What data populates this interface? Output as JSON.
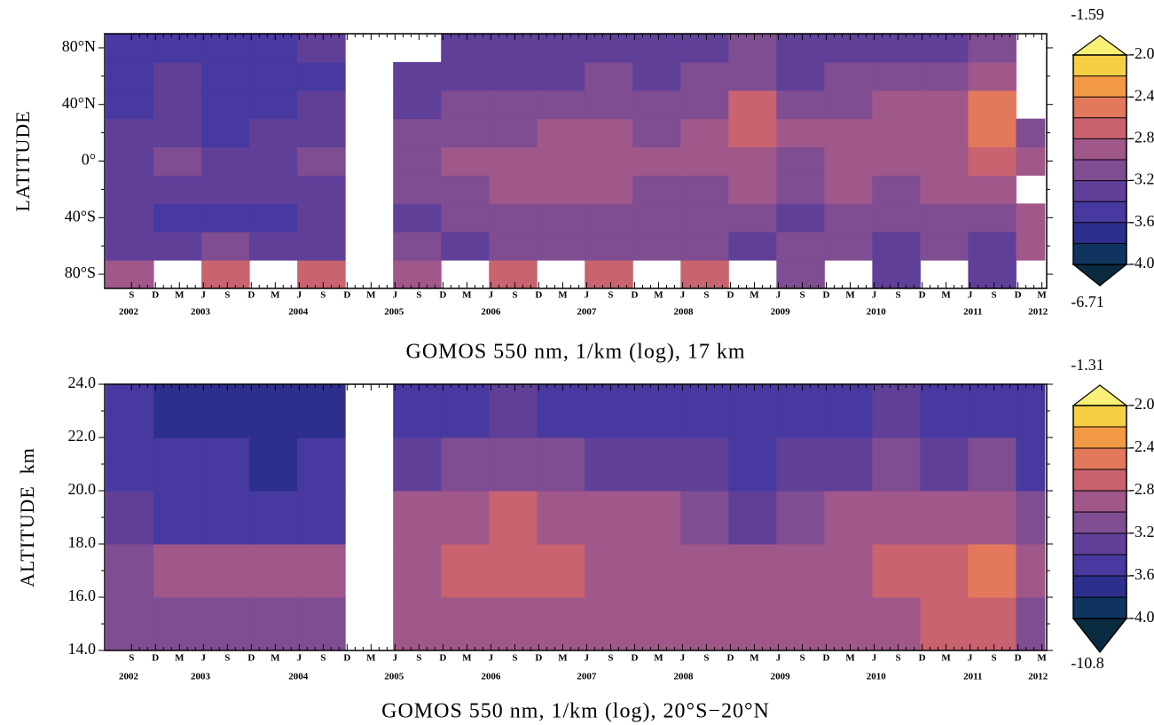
{
  "chart_data": [
    {
      "type": "heatmap",
      "title": "GOMOS 550 nm, 1/km (log), 17 km",
      "ylabel": "LATITUDE",
      "xlim": [
        2002.39,
        2012.22
      ],
      "ylim": [
        -90,
        90
      ],
      "xticks": [
        {
          "value": 2002.67,
          "label": "S"
        },
        {
          "value": 2002.92,
          "label": "D"
        },
        {
          "value": 2003.17,
          "label": "M"
        },
        {
          "value": 2003.42,
          "label": "J"
        },
        {
          "value": 2003.67,
          "label": "S"
        },
        {
          "value": 2003.92,
          "label": "D"
        },
        {
          "value": 2004.17,
          "label": "M"
        },
        {
          "value": 2004.42,
          "label": "J"
        },
        {
          "value": 2004.67,
          "label": "S"
        },
        {
          "value": 2004.92,
          "label": "D"
        },
        {
          "value": 2005.17,
          "label": "M"
        },
        {
          "value": 2005.42,
          "label": "J"
        },
        {
          "value": 2005.67,
          "label": "S"
        },
        {
          "value": 2005.92,
          "label": "D"
        },
        {
          "value": 2006.17,
          "label": "M"
        },
        {
          "value": 2006.42,
          "label": "J"
        },
        {
          "value": 2006.67,
          "label": "S"
        },
        {
          "value": 2006.92,
          "label": "D"
        },
        {
          "value": 2007.17,
          "label": "M"
        },
        {
          "value": 2007.42,
          "label": "J"
        },
        {
          "value": 2007.67,
          "label": "S"
        },
        {
          "value": 2007.92,
          "label": "D"
        },
        {
          "value": 2008.17,
          "label": "M"
        },
        {
          "value": 2008.42,
          "label": "J"
        },
        {
          "value": 2008.67,
          "label": "S"
        },
        {
          "value": 2008.92,
          "label": "D"
        },
        {
          "value": 2009.17,
          "label": "M"
        },
        {
          "value": 2009.42,
          "label": "J"
        },
        {
          "value": 2009.67,
          "label": "S"
        },
        {
          "value": 2009.92,
          "label": "D"
        },
        {
          "value": 2010.17,
          "label": "M"
        },
        {
          "value": 2010.42,
          "label": "J"
        },
        {
          "value": 2010.67,
          "label": "S"
        },
        {
          "value": 2010.92,
          "label": "D"
        },
        {
          "value": 2011.17,
          "label": "M"
        },
        {
          "value": 2011.42,
          "label": "J"
        },
        {
          "value": 2011.67,
          "label": "S"
        },
        {
          "value": 2011.92,
          "label": "D"
        },
        {
          "value": 2012.17,
          "label": "M"
        }
      ],
      "year_labels": [
        {
          "value": 2002.64,
          "label": "2002"
        },
        {
          "value": 2003.39,
          "label": "2003"
        },
        {
          "value": 2004.41,
          "label": "2004"
        },
        {
          "value": 2005.41,
          "label": "2005"
        },
        {
          "value": 2006.42,
          "label": "2006"
        },
        {
          "value": 2007.42,
          "label": "2007"
        },
        {
          "value": 2008.43,
          "label": "2008"
        },
        {
          "value": 2009.44,
          "label": "2009"
        },
        {
          "value": 2010.44,
          "label": "2010"
        },
        {
          "value": 2011.45,
          "label": "2011"
        },
        {
          "value": 2012.13,
          "label": "2012"
        }
      ],
      "yticks": [
        {
          "value": -80,
          "label": "80°S"
        },
        {
          "value": -40,
          "label": "40°S"
        },
        {
          "value": 0,
          "label": "0°"
        },
        {
          "value": 40,
          "label": "40°N"
        },
        {
          "value": 80,
          "label": "80°N"
        }
      ],
      "x_edges": [
        2002.4,
        2002.9,
        2003.4,
        2003.9,
        2004.4,
        2004.9,
        2005.4,
        2005.9,
        2006.4,
        2006.9,
        2007.4,
        2007.9,
        2008.4,
        2008.9,
        2009.4,
        2009.9,
        2010.4,
        2010.9,
        2011.4,
        2011.9,
        2012.2
      ],
      "y_edges": [
        -90,
        -70,
        -50,
        -30,
        -10,
        10,
        30,
        50,
        70,
        90
      ],
      "z": [
        [
          -2.9,
          null,
          -2.8,
          null,
          -2.7,
          null,
          -3.0,
          null,
          -2.7,
          null,
          -2.8,
          null,
          -2.8,
          null,
          -3.2,
          null,
          -3.3,
          null,
          -3.3,
          null
        ],
        [
          -3.3,
          -3.4,
          -3.2,
          -3.4,
          -3.3,
          null,
          -3.2,
          -3.3,
          -3.1,
          -3.2,
          -3.1,
          -3.2,
          -3.1,
          -3.3,
          -3.2,
          -3.2,
          -3.3,
          -3.2,
          -3.3,
          -2.9
        ],
        [
          -3.4,
          -3.5,
          -3.5,
          -3.5,
          -3.4,
          null,
          -3.3,
          -3.2,
          -3.1,
          -3.1,
          -3.1,
          -3.1,
          -3.2,
          -3.1,
          -3.3,
          -3.1,
          -3.2,
          -3.1,
          -3.2,
          -2.9
        ],
        [
          -3.4,
          -3.3,
          -3.4,
          -3.4,
          -3.3,
          null,
          -3.2,
          -3.1,
          -3.0,
          -3.0,
          -3.0,
          -3.1,
          -3.1,
          -3.0,
          -3.2,
          -3.0,
          -3.1,
          -3.0,
          -3.0,
          null
        ],
        [
          -3.3,
          -3.2,
          -3.4,
          -3.3,
          -3.2,
          null,
          -3.1,
          -3.0,
          -3.0,
          -2.9,
          -3.0,
          -3.0,
          -3.0,
          -2.9,
          -3.1,
          -3.0,
          -3.0,
          -2.9,
          -2.8,
          -3.0
        ],
        [
          -3.4,
          -3.3,
          -3.5,
          -3.4,
          -3.3,
          null,
          -3.2,
          -3.1,
          -3.1,
          -3.0,
          -3.0,
          -3.1,
          -3.0,
          -2.8,
          -3.0,
          -3.0,
          -3.0,
          -2.9,
          -2.6,
          -3.1
        ],
        [
          -3.5,
          -3.4,
          -3.5,
          -3.5,
          -3.4,
          null,
          -3.3,
          -3.2,
          -3.2,
          -3.2,
          -3.1,
          -3.2,
          -3.1,
          -2.8,
          -3.1,
          -3.1,
          -3.0,
          -3.0,
          -2.6,
          null
        ],
        [
          -3.5,
          -3.4,
          -3.5,
          -3.6,
          -3.5,
          null,
          -3.4,
          -3.3,
          -3.3,
          -3.3,
          -3.2,
          -3.3,
          -3.2,
          -3.1,
          -3.3,
          -3.2,
          -3.2,
          -3.2,
          -3.0,
          null
        ],
        [
          -3.6,
          -3.5,
          -3.5,
          -3.6,
          -3.4,
          null,
          null,
          -3.4,
          -3.3,
          -3.3,
          -3.3,
          -3.3,
          -3.3,
          -3.2,
          -3.3,
          -3.3,
          -3.3,
          -3.3,
          -3.1,
          null
        ]
      ],
      "colorbar": {
        "levels": [
          -4.0,
          -3.8,
          -3.6,
          -3.4,
          -3.2,
          -3.0,
          -2.8,
          -2.6,
          -2.4,
          -2.2,
          -2.0
        ],
        "ticks": [
          {
            "value": -4,
            "label": "-4.0"
          },
          -3.6,
          -3.2,
          -2.8,
          -2.4,
          {
            "value": -2,
            "label": "-2.0"
          }
        ],
        "colors": [
          "#0a2a40",
          "#0f3460",
          "#2c2f8c",
          "#4739a0",
          "#603f99",
          "#7f4d92",
          "#a0578a",
          "#c8636f",
          "#e2795c",
          "#f19a43",
          "#f6cf45",
          "#f8ef76"
        ],
        "min": -6.71,
        "max": -1.59
      }
    },
    {
      "type": "heatmap",
      "title": "GOMOS 550 nm, 1/km (log), 20°S−20°N",
      "ylabel": "ALTITUDE  km",
      "xlim": [
        2002.39,
        2012.22
      ],
      "ylim": [
        14,
        24
      ],
      "xticks": [
        {
          "value": 2002.67,
          "label": "S"
        },
        {
          "value": 2002.92,
          "label": "D"
        },
        {
          "value": 2003.17,
          "label": "M"
        },
        {
          "value": 2003.42,
          "label": "J"
        },
        {
          "value": 2003.67,
          "label": "S"
        },
        {
          "value": 2003.92,
          "label": "D"
        },
        {
          "value": 2004.17,
          "label": "M"
        },
        {
          "value": 2004.42,
          "label": "J"
        },
        {
          "value": 2004.67,
          "label": "S"
        },
        {
          "value": 2004.92,
          "label": "D"
        },
        {
          "value": 2005.17,
          "label": "M"
        },
        {
          "value": 2005.42,
          "label": "J"
        },
        {
          "value": 2005.67,
          "label": "S"
        },
        {
          "value": 2005.92,
          "label": "D"
        },
        {
          "value": 2006.17,
          "label": "M"
        },
        {
          "value": 2006.42,
          "label": "J"
        },
        {
          "value": 2006.67,
          "label": "S"
        },
        {
          "value": 2006.92,
          "label": "D"
        },
        {
          "value": 2007.17,
          "label": "M"
        },
        {
          "value": 2007.42,
          "label": "J"
        },
        {
          "value": 2007.67,
          "label": "S"
        },
        {
          "value": 2007.92,
          "label": "D"
        },
        {
          "value": 2008.17,
          "label": "M"
        },
        {
          "value": 2008.42,
          "label": "J"
        },
        {
          "value": 2008.67,
          "label": "S"
        },
        {
          "value": 2008.92,
          "label": "D"
        },
        {
          "value": 2009.17,
          "label": "M"
        },
        {
          "value": 2009.42,
          "label": "J"
        },
        {
          "value": 2009.67,
          "label": "S"
        },
        {
          "value": 2009.92,
          "label": "D"
        },
        {
          "value": 2010.17,
          "label": "M"
        },
        {
          "value": 2010.42,
          "label": "J"
        },
        {
          "value": 2010.67,
          "label": "S"
        },
        {
          "value": 2010.92,
          "label": "D"
        },
        {
          "value": 2011.17,
          "label": "M"
        },
        {
          "value": 2011.42,
          "label": "J"
        },
        {
          "value": 2011.67,
          "label": "S"
        },
        {
          "value": 2011.92,
          "label": "D"
        },
        {
          "value": 2012.17,
          "label": "M"
        }
      ],
      "year_labels": [
        {
          "value": 2002.64,
          "label": "2002"
        },
        {
          "value": 2003.39,
          "label": "2003"
        },
        {
          "value": 2004.41,
          "label": "2004"
        },
        {
          "value": 2005.41,
          "label": "2005"
        },
        {
          "value": 2006.42,
          "label": "2006"
        },
        {
          "value": 2007.42,
          "label": "2007"
        },
        {
          "value": 2008.43,
          "label": "2008"
        },
        {
          "value": 2009.44,
          "label": "2009"
        },
        {
          "value": 2010.44,
          "label": "2010"
        },
        {
          "value": 2011.45,
          "label": "2011"
        },
        {
          "value": 2012.13,
          "label": "2012"
        }
      ],
      "yticks": [
        {
          "value": 14,
          "label": "14.0"
        },
        {
          "value": 16,
          "label": "16.0"
        },
        {
          "value": 18,
          "label": "18.0"
        },
        {
          "value": 20,
          "label": "20.0"
        },
        {
          "value": 22,
          "label": "22.0"
        },
        {
          "value": 24,
          "label": "24.0"
        }
      ],
      "x_edges": [
        2002.4,
        2002.9,
        2003.4,
        2003.9,
        2004.4,
        2004.9,
        2005.4,
        2005.9,
        2006.4,
        2006.9,
        2007.4,
        2007.9,
        2008.4,
        2008.9,
        2009.4,
        2009.9,
        2010.4,
        2010.9,
        2011.4,
        2011.9,
        2012.2
      ],
      "y_edges": [
        14,
        16,
        18,
        20,
        22,
        24
      ],
      "z": [
        [
          -3.2,
          -3.1,
          -3.2,
          -3.1,
          -3.1,
          null,
          -3.0,
          -2.9,
          -2.9,
          -2.9,
          -2.9,
          -2.9,
          -3.0,
          -3.0,
          -3.0,
          -2.9,
          -2.9,
          -2.8,
          -2.7,
          -3.1
        ],
        [
          -3.1,
          -3.0,
          -3.0,
          -3.0,
          -3.0,
          null,
          -2.9,
          -2.8,
          -2.8,
          -2.8,
          -2.9,
          -2.9,
          -2.9,
          -3.0,
          -2.9,
          -2.9,
          -2.8,
          -2.8,
          -2.6,
          -3.0
        ],
        [
          -3.3,
          -3.5,
          -3.5,
          -3.6,
          -3.5,
          null,
          -3.0,
          -2.9,
          -2.8,
          -2.9,
          -3.0,
          -3.0,
          -3.1,
          -3.3,
          -3.1,
          -3.0,
          -3.0,
          -3.0,
          -2.9,
          -3.2
        ],
        [
          -3.5,
          -3.6,
          -3.6,
          -3.7,
          -3.6,
          null,
          -3.3,
          -3.2,
          -3.1,
          -3.2,
          -3.3,
          -3.3,
          -3.4,
          -3.5,
          -3.4,
          -3.3,
          -3.2,
          -3.3,
          -3.2,
          -3.5
        ],
        [
          -3.6,
          -3.7,
          -3.7,
          -3.8,
          -3.7,
          null,
          -3.5,
          -3.5,
          -3.4,
          -3.5,
          -3.5,
          -3.5,
          -3.5,
          -3.6,
          -3.5,
          -3.5,
          -3.4,
          -3.5,
          -3.5,
          -3.6
        ]
      ],
      "colorbar": {
        "levels": [
          -4.0,
          -3.8,
          -3.6,
          -3.4,
          -3.2,
          -3.0,
          -2.8,
          -2.6,
          -2.4,
          -2.2,
          -2.0
        ],
        "ticks": [
          {
            "value": -4,
            "label": "-4.0"
          },
          -3.6,
          -3.2,
          -2.8,
          -2.4,
          {
            "value": -2,
            "label": "-2.0"
          }
        ],
        "colors": [
          "#0a2a40",
          "#0f3460",
          "#2c2f8c",
          "#4739a0",
          "#603f99",
          "#7f4d92",
          "#a0578a",
          "#c8636f",
          "#e2795c",
          "#f19a43",
          "#f6cf45",
          "#f8ef76"
        ],
        "min": -10.8,
        "max": -1.31
      }
    }
  ]
}
